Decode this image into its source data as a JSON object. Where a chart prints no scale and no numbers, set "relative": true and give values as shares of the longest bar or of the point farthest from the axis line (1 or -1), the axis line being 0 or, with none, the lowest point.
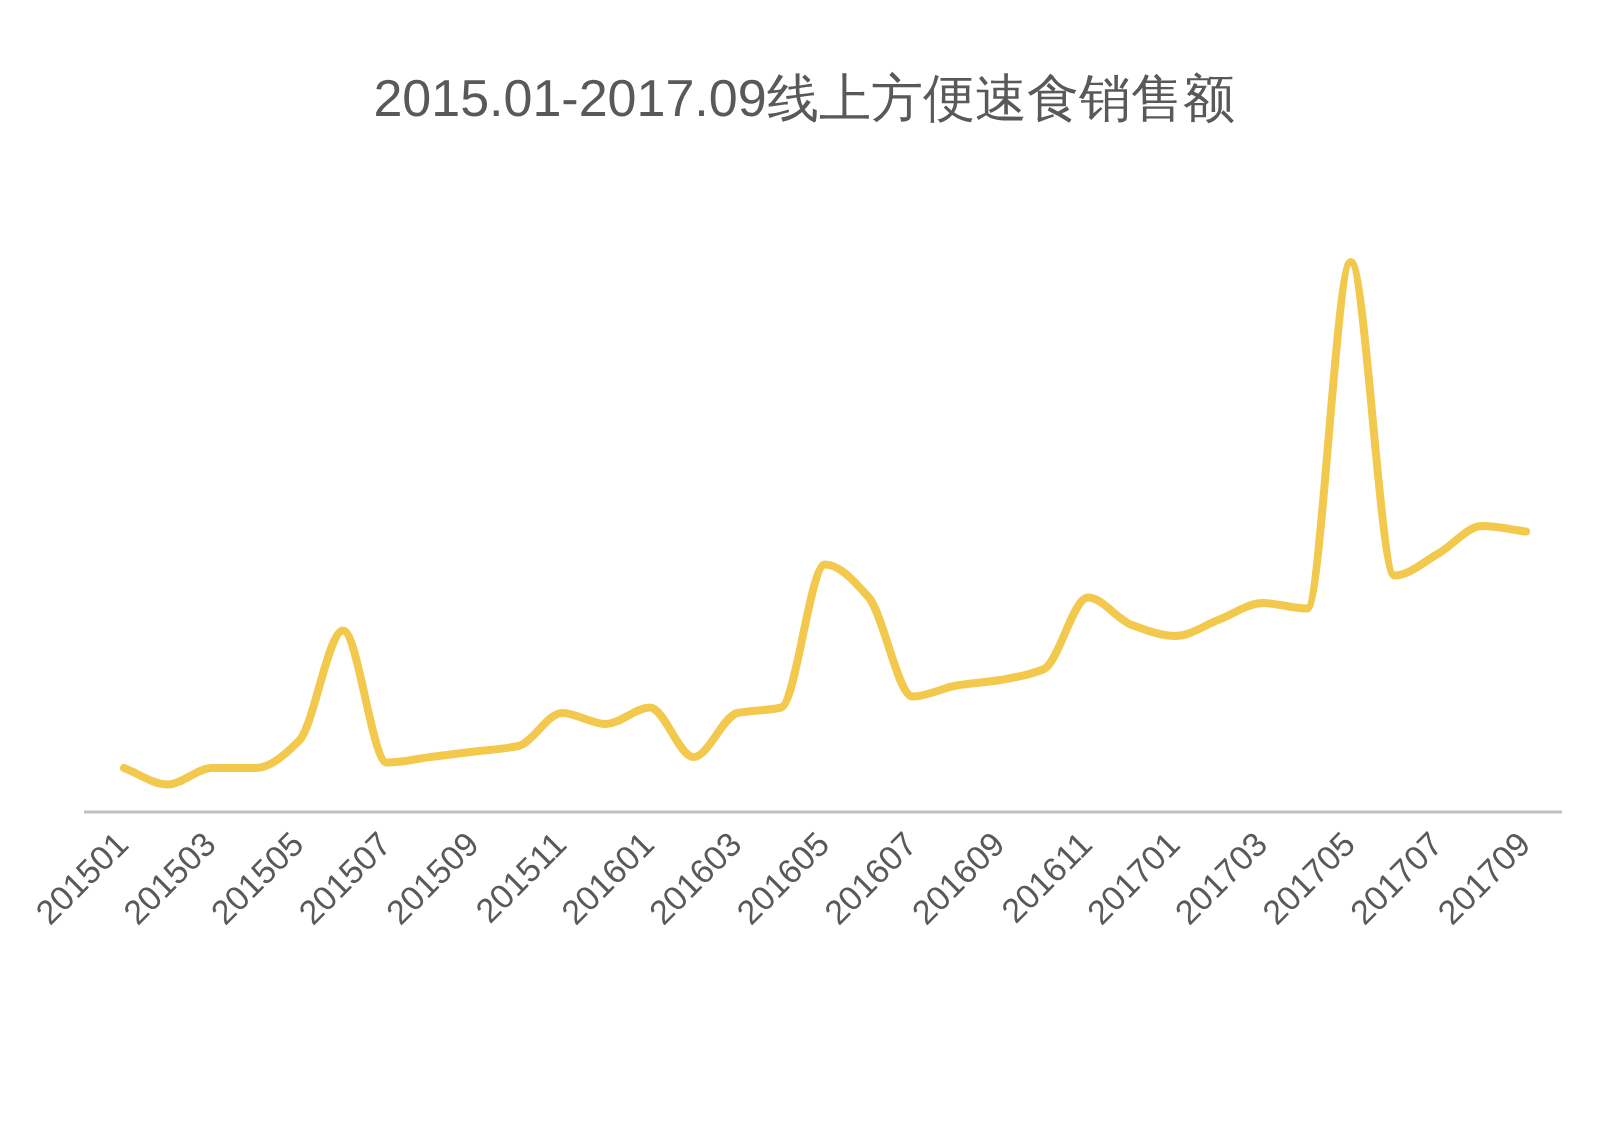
{
  "chart_data": {
    "type": "line",
    "title": "2015.01-2017.09线上方便速食销售额",
    "relative": true,
    "categories": [
      "201501",
      null,
      "201503",
      null,
      "201505",
      null,
      "201507",
      null,
      "201509",
      null,
      "201511",
      null,
      "201601",
      null,
      "201603",
      null,
      "201605",
      null,
      "201607",
      null,
      "201609",
      null,
      "201611",
      null,
      "201701",
      null,
      "201703",
      null,
      "201705",
      null,
      "201707",
      null,
      "201709"
    ],
    "series": [
      {
        "color": "#f2c94c",
        "values": [
          0.08,
          0.05,
          0.08,
          0.08,
          0.13,
          0.33,
          0.09,
          0.1,
          0.11,
          0.12,
          0.18,
          0.16,
          0.19,
          0.1,
          0.18,
          0.19,
          0.45,
          0.39,
          0.21,
          0.23,
          0.24,
          0.26,
          0.39,
          0.34,
          0.32,
          0.35,
          0.38,
          0.37,
          1,
          0.43,
          0.47,
          0.52,
          0.51
        ]
      }
    ]
  }
}
